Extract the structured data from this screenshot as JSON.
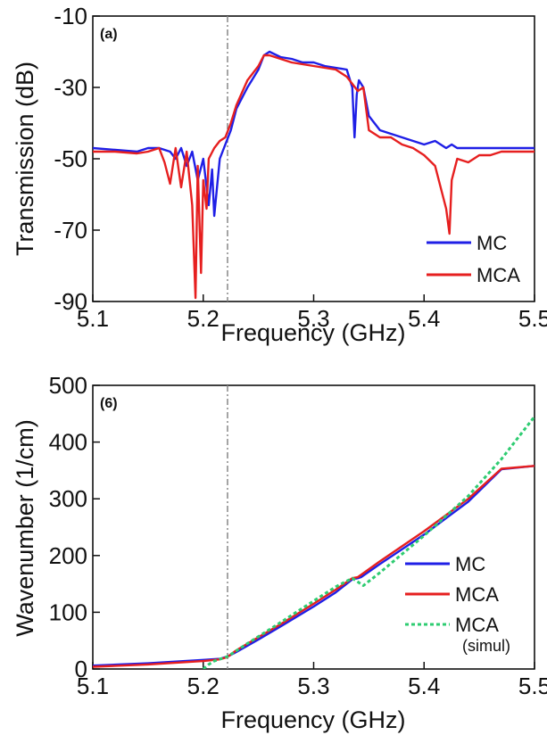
{
  "chart_data": [
    {
      "type": "line",
      "panel_label": "(a)",
      "xlabel": "Frequency (GHz)",
      "ylabel": "Transmission (dB)",
      "xlim": [
        5.1,
        5.5
      ],
      "ylim": [
        -90,
        -10
      ],
      "xticks": [
        "5.1",
        "5.2",
        "5.3",
        "5.4",
        "5.5"
      ],
      "yticks": [
        "-10",
        "-30",
        "-50",
        "-70",
        "-90"
      ],
      "marker_x": 5.222,
      "legend_position": "bottom-right",
      "series": [
        {
          "name": "MC",
          "color": "#1f1fe6",
          "x": [
            5.1,
            5.12,
            5.14,
            5.15,
            5.16,
            5.17,
            5.175,
            5.18,
            5.185,
            5.19,
            5.195,
            5.2,
            5.205,
            5.208,
            5.21,
            5.215,
            5.22,
            5.225,
            5.23,
            5.24,
            5.25,
            5.255,
            5.26,
            5.27,
            5.28,
            5.29,
            5.3,
            5.31,
            5.32,
            5.33,
            5.335,
            5.337,
            5.339,
            5.341,
            5.345,
            5.35,
            5.36,
            5.37,
            5.38,
            5.39,
            5.4,
            5.41,
            5.42,
            5.425,
            5.43,
            5.44,
            5.45,
            5.46,
            5.48,
            5.5
          ],
          "y": [
            -47,
            -47.5,
            -48,
            -47,
            -47,
            -48,
            -50,
            -47,
            -52,
            -48,
            -56,
            -50,
            -63,
            -53,
            -66,
            -50,
            -46,
            -42,
            -36,
            -30,
            -25,
            -21,
            -20,
            -21.5,
            -22,
            -23,
            -23,
            -24,
            -24.5,
            -25,
            -30,
            -44,
            -32,
            -28,
            -30,
            -38,
            -42,
            -43,
            -44,
            -45,
            -46,
            -45,
            -47,
            -46,
            -47,
            -47,
            -47,
            -47,
            -47,
            -47
          ]
        },
        {
          "name": "MCA",
          "color": "#e61f1f",
          "x": [
            5.1,
            5.12,
            5.14,
            5.15,
            5.16,
            5.165,
            5.17,
            5.175,
            5.18,
            5.185,
            5.19,
            5.193,
            5.195,
            5.198,
            5.2,
            5.203,
            5.205,
            5.21,
            5.215,
            5.22,
            5.225,
            5.23,
            5.24,
            5.25,
            5.255,
            5.26,
            5.27,
            5.28,
            5.29,
            5.3,
            5.31,
            5.32,
            5.33,
            5.335,
            5.34,
            5.345,
            5.35,
            5.36,
            5.37,
            5.38,
            5.39,
            5.4,
            5.41,
            5.415,
            5.42,
            5.423,
            5.425,
            5.43,
            5.44,
            5.45,
            5.46,
            5.47,
            5.48,
            5.5
          ],
          "y": [
            -48,
            -48,
            -48.5,
            -48,
            -47,
            -51,
            -57,
            -47,
            -58,
            -48,
            -63,
            -89,
            -52,
            -82,
            -56,
            -64,
            -50,
            -47,
            -45,
            -44,
            -40,
            -35,
            -28,
            -24,
            -21,
            -21,
            -22,
            -23,
            -23.5,
            -24,
            -24.5,
            -25,
            -27,
            -29,
            -31,
            -30,
            -42,
            -44,
            -44,
            -46,
            -47,
            -49,
            -52,
            -58,
            -64,
            -71,
            -56,
            -50,
            -51,
            -49,
            -49,
            -48,
            -48,
            -48
          ]
        }
      ]
    },
    {
      "type": "line",
      "panel_label": "(6)",
      "xlabel": "Frequency (GHz)",
      "ylabel": "Wavenumber (1/cm)",
      "xlim": [
        5.1,
        5.5
      ],
      "ylim": [
        0,
        500
      ],
      "xticks": [
        "5.1",
        "5.2",
        "5.3",
        "5.4",
        "5.5"
      ],
      "yticks": [
        "500",
        "400",
        "300",
        "200",
        "100",
        "0"
      ],
      "marker_x": 5.222,
      "legend_position": "bottom-right",
      "series": [
        {
          "name": "MC",
          "color": "#1f1fe6",
          "x": [
            5.1,
            5.15,
            5.2,
            5.215,
            5.222,
            5.23,
            5.25,
            5.27,
            5.3,
            5.32,
            5.335,
            5.34,
            5.343,
            5.36,
            5.4,
            5.44,
            5.47,
            5.5
          ],
          "y": [
            6,
            10,
            16,
            18,
            22,
            30,
            52,
            75,
            110,
            135,
            158,
            160,
            162,
            185,
            237,
            295,
            352,
            358
          ]
        },
        {
          "name": "MCA",
          "color": "#e61f1f",
          "x": [
            5.1,
            5.15,
            5.2,
            5.215,
            5.222,
            5.23,
            5.25,
            5.27,
            5.3,
            5.32,
            5.335,
            5.34,
            5.343,
            5.36,
            5.4,
            5.44,
            5.47,
            5.5
          ],
          "y": [
            4,
            8,
            14,
            17,
            21,
            33,
            56,
            79,
            115,
            140,
            160,
            162,
            166,
            190,
            243,
            300,
            353,
            358
          ]
        },
        {
          "name": "MCA",
          "name_sub": "(simul)",
          "color": "#2ecc71",
          "dashed": true,
          "x": [
            5.2,
            5.205,
            5.21,
            5.222,
            5.24,
            5.27,
            5.3,
            5.32,
            5.335,
            5.345,
            5.36,
            5.4,
            5.44,
            5.47,
            5.5
          ],
          "y": [
            0,
            8,
            14,
            22,
            45,
            82,
            120,
            145,
            160,
            147,
            170,
            235,
            305,
            370,
            445
          ]
        }
      ]
    }
  ]
}
